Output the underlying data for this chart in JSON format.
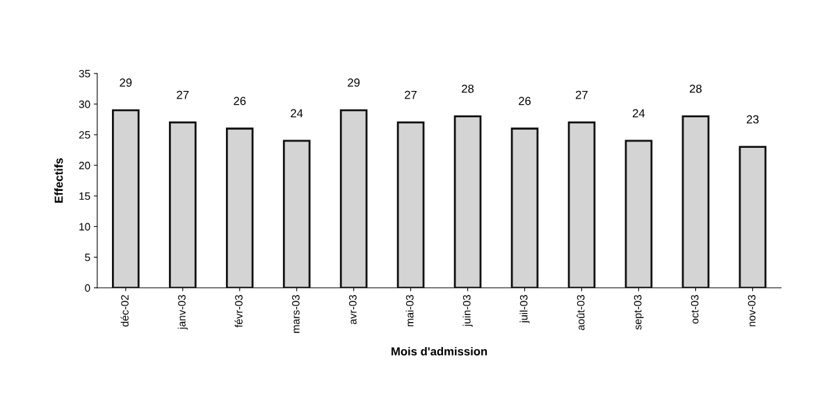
{
  "chart_data": {
    "type": "bar",
    "xlabel": "Mois d'admission",
    "ylabel": "Effectifs",
    "categories": [
      "déc-02",
      "janv-03",
      "févr-03",
      "mars-03",
      "avr-03",
      "mai-03",
      "juin-03",
      "juil-03",
      "août-03",
      "sept-03",
      "oct-03",
      "nov-03"
    ],
    "values": [
      29,
      27,
      26,
      24,
      29,
      27,
      28,
      26,
      27,
      24,
      28,
      23
    ],
    "color": "#d4d4d4",
    "ylim": [
      0,
      35
    ],
    "yticks": [
      0,
      5,
      10,
      15,
      20,
      25,
      30,
      35
    ],
    "data_labels": true,
    "grid": false
  }
}
